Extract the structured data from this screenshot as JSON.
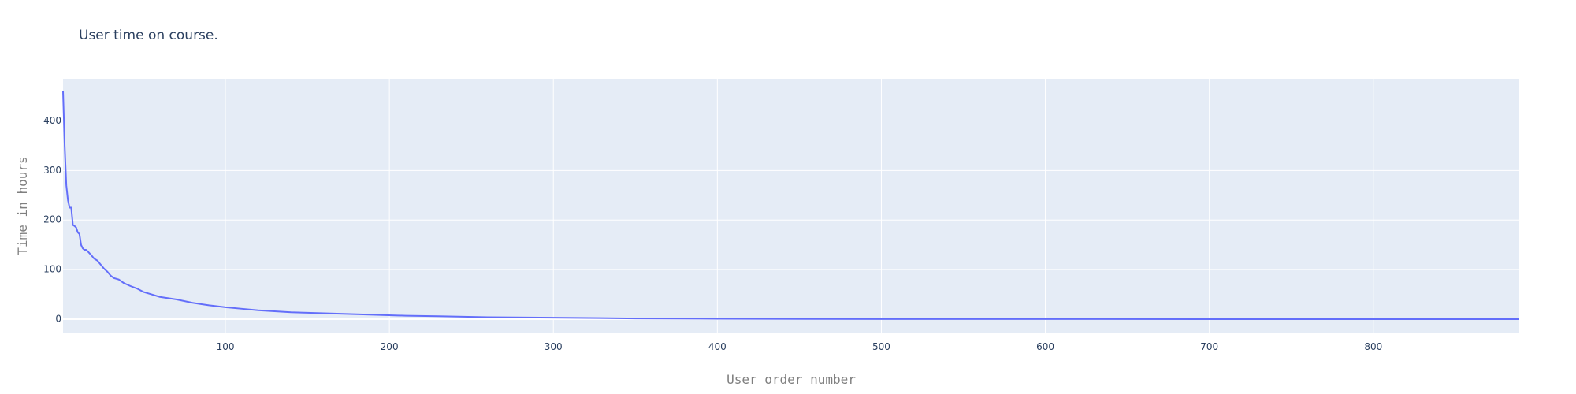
{
  "chart_data": {
    "type": "line",
    "title": "User time on course.",
    "xlabel": "User order number",
    "ylabel": "Time in hours",
    "xlim": [
      1,
      889
    ],
    "ylim": [
      -27,
      485
    ],
    "x_ticks": [
      100,
      200,
      300,
      400,
      500,
      600,
      700,
      800
    ],
    "y_ticks": [
      0,
      100,
      200,
      300,
      400
    ],
    "grid": true,
    "colors": {
      "plot_bg": "#e5ecf6",
      "grid": "#ffffff",
      "line": "#636efa",
      "text": "#2a3f5f",
      "axis_title": "#7f7f7f"
    },
    "series": [
      {
        "x": [
          1,
          2,
          3,
          4,
          5,
          6,
          7,
          8,
          9,
          10,
          11,
          12,
          13,
          14,
          15,
          16,
          18,
          20,
          22,
          24,
          26,
          28,
          30,
          32,
          35,
          38,
          42,
          46,
          50,
          55,
          60,
          70,
          80,
          90,
          100,
          110,
          120,
          130,
          140,
          150,
          170,
          190,
          210,
          230,
          260,
          300,
          350,
          400,
          450,
          500,
          600,
          700,
          800,
          889
        ],
        "y": [
          460,
          350,
          270,
          240,
          225,
          225,
          190,
          188,
          185,
          175,
          172,
          150,
          143,
          140,
          140,
          137,
          130,
          122,
          118,
          110,
          102,
          96,
          88,
          83,
          80,
          73,
          67,
          62,
          55,
          50,
          45,
          40,
          33,
          28,
          24,
          21,
          18,
          16,
          14,
          13,
          11,
          9,
          7,
          6,
          4,
          3,
          1.5,
          0.8,
          0.5,
          0.3,
          0.2,
          0.1,
          0.05,
          0.01
        ]
      }
    ]
  }
}
